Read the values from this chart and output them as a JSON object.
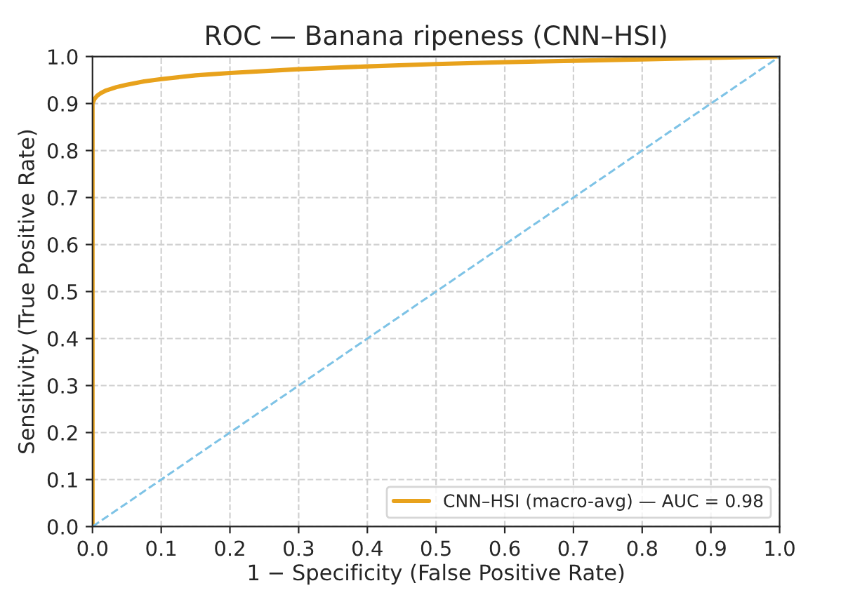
{
  "chart_data": {
    "type": "line",
    "title": "ROC — Banana ripeness (CNN–HSI)",
    "xlabel": "1 − Specificity (False Positive Rate)",
    "ylabel": "Sensitivity (True Positive Rate)",
    "series": [
      {
        "name": "CNN–HSI (macro-avg) — AUC = 0.98",
        "color": "#e8a21c",
        "x": [
          0,
          0,
          0.003,
          0.007,
          0.012,
          0.02,
          0.035,
          0.05,
          0.075,
          0.1,
          0.15,
          0.2,
          0.3,
          0.4,
          0.5,
          0.6,
          0.7,
          0.8,
          0.9,
          1.0
        ],
        "values": [
          0,
          0.9,
          0.91,
          0.917,
          0.922,
          0.928,
          0.935,
          0.94,
          0.947,
          0.952,
          0.96,
          0.965,
          0.973,
          0.979,
          0.984,
          0.988,
          0.991,
          0.994,
          0.997,
          1.0
        ]
      },
      {
        "color": "#7ec3e6",
        "line_style": "dashed",
        "x": [
          0,
          1
        ],
        "values": [
          0,
          1
        ]
      }
    ],
    "xlim": [
      0,
      1
    ],
    "ylim": [
      0,
      1
    ],
    "xticks": [
      {
        "value": 0,
        "label": "0.0"
      },
      0.1,
      0.2,
      0.3,
      0.4,
      0.5,
      0.6,
      0.7,
      0.8,
      0.9,
      {
        "value": 1,
        "label": "1.0"
      }
    ],
    "yticks": [
      {
        "value": 0,
        "label": "0.0"
      },
      0.1,
      0.2,
      0.3,
      0.4,
      0.5,
      0.6,
      0.7,
      0.8,
      0.9,
      {
        "value": 1,
        "label": "1.0"
      }
    ],
    "grid": true,
    "legend": "bottom right"
  }
}
